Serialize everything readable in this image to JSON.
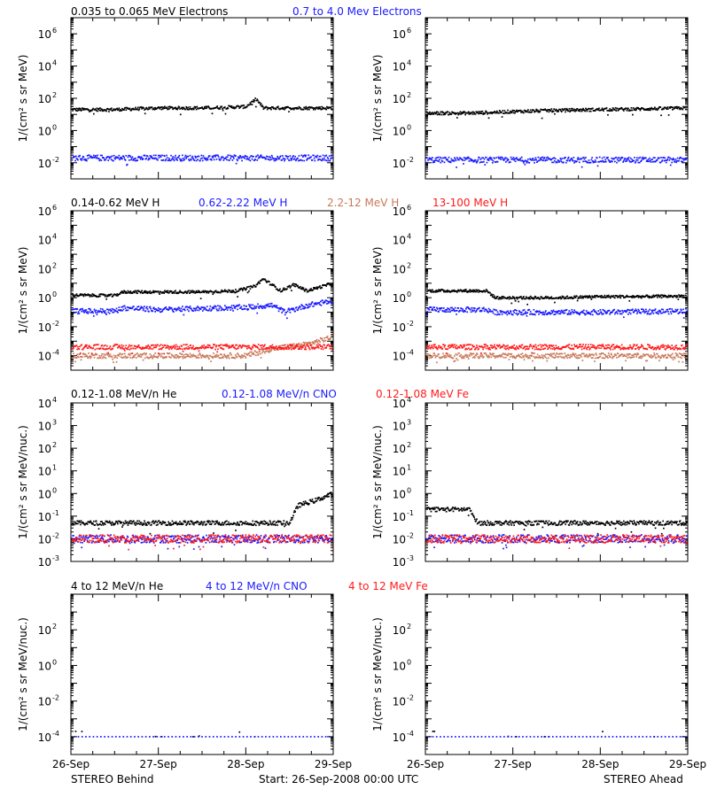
{
  "colors": {
    "black": "#000000",
    "blue": "#1a1aff",
    "brown": "#c87a5a",
    "red": "#ff1a1a"
  },
  "rows": [
    {
      "legend": [
        {
          "text": "0.035 to 0.065 MeV Electrons",
          "color": "#000000"
        },
        {
          "text": "0.7 to 4.0 Mev Electrons",
          "color": "#1a1aff"
        }
      ]
    },
    {
      "legend": [
        {
          "text": "0.14-0.62 MeV H",
          "color": "#000000"
        },
        {
          "text": "0.62-2.22 MeV H",
          "color": "#1a1aff"
        },
        {
          "text": "2.2-12 MeV H",
          "color": "#c87a5a"
        },
        {
          "text": "13-100 MeV H",
          "color": "#ff1a1a"
        }
      ]
    },
    {
      "legend": [
        {
          "text": "0.12-1.08 MeV/n He",
          "color": "#000000"
        },
        {
          "text": "0.12-1.08 MeV/n CNO",
          "color": "#1a1aff"
        },
        {
          "text": "0.12-1.08 MeV Fe",
          "color": "#ff1a1a"
        }
      ]
    },
    {
      "legend": [
        {
          "text": "4 to 12 MeV/n He",
          "color": "#000000"
        },
        {
          "text": "4 to 12 MeV/n CNO",
          "color": "#1a1aff"
        },
        {
          "text": "4 to 12 MeV Fe",
          "color": "#ff1a1a"
        }
      ]
    }
  ],
  "x_tick_labels": [
    "26-Sep",
    "27-Sep",
    "28-Sep",
    "29-Sep"
  ],
  "footer": {
    "left": "STEREO Behind",
    "center": "Start: 26-Sep-2008 00:00 UTC",
    "right": "STEREO Ahead"
  },
  "chart_data": [
    {
      "type": "scatter",
      "panel": "behind-electrons",
      "yscale": "log",
      "ylim_exp": [
        -3,
        7
      ],
      "ylabel": "1/(cm² s sr MeV)",
      "ytick_exps": [
        -2,
        0,
        2,
        4,
        6
      ],
      "x_range_days": [
        0,
        3
      ],
      "series": [
        {
          "name": "0.035 to 0.065 MeV Electrons",
          "color": "#000000",
          "points": [
            [
              0,
              20
            ],
            [
              0.5,
              20
            ],
            [
              1,
              25
            ],
            [
              1.5,
              25
            ],
            [
              2.0,
              30
            ],
            [
              2.12,
              90
            ],
            [
              2.2,
              25
            ],
            [
              2.6,
              25
            ],
            [
              3,
              25
            ]
          ]
        },
        {
          "name": "0.7 to 4.0 Mev Electrons",
          "color": "#1a1aff",
          "points": [
            [
              0,
              0.02
            ],
            [
              1,
              0.02
            ],
            [
              2,
              0.02
            ],
            [
              3,
              0.02
            ]
          ]
        }
      ]
    },
    {
      "type": "scatter",
      "panel": "ahead-electrons",
      "yscale": "log",
      "ylim_exp": [
        -3,
        7
      ],
      "ylabel": "1/(cm² s sr MeV)",
      "ytick_exps": [
        -2,
        0,
        2,
        4,
        6
      ],
      "x_range_days": [
        0,
        3
      ],
      "series": [
        {
          "name": "0.035 to 0.065 MeV Electrons",
          "color": "#000000",
          "points": [
            [
              0,
              12
            ],
            [
              0.5,
              12
            ],
            [
              1,
              15
            ],
            [
              1.5,
              18
            ],
            [
              2,
              20
            ],
            [
              2.5,
              22
            ],
            [
              3,
              25
            ]
          ]
        },
        {
          "name": "0.7 to 4.0 Mev Electrons",
          "color": "#1a1aff",
          "points": [
            [
              0,
              0.015
            ],
            [
              1,
              0.015
            ],
            [
              2,
              0.015
            ],
            [
              3,
              0.015
            ]
          ]
        }
      ]
    },
    {
      "type": "scatter",
      "panel": "behind-protons",
      "yscale": "log",
      "ylim_exp": [
        -5,
        6
      ],
      "ylabel": "1/(cm² s sr MeV)",
      "ytick_exps": [
        -4,
        -2,
        0,
        2,
        4,
        6
      ],
      "x_range_days": [
        0,
        3
      ],
      "series": [
        {
          "name": "0.14-0.62 MeV H",
          "color": "#000000",
          "points": [
            [
              0,
              1.5
            ],
            [
              0.5,
              1.4
            ],
            [
              0.6,
              2.5
            ],
            [
              1,
              2.5
            ],
            [
              1.5,
              2.5
            ],
            [
              1.9,
              3
            ],
            [
              2.1,
              6
            ],
            [
              2.2,
              20
            ],
            [
              2.4,
              3
            ],
            [
              2.55,
              8
            ],
            [
              2.7,
              3
            ],
            [
              3,
              10
            ]
          ]
        },
        {
          "name": "0.62-2.22 MeV H",
          "color": "#1a1aff",
          "points": [
            [
              0,
              0.12
            ],
            [
              0.5,
              0.12
            ],
            [
              0.6,
              0.2
            ],
            [
              1,
              0.15
            ],
            [
              1.5,
              0.18
            ],
            [
              2,
              0.22
            ],
            [
              2.3,
              0.3
            ],
            [
              2.45,
              0.1
            ],
            [
              2.7,
              0.3
            ],
            [
              3,
              0.6
            ]
          ]
        },
        {
          "name": "2.2-12 MeV H",
          "color": "#c87a5a",
          "points": [
            [
              0,
              0.0001
            ],
            [
              1,
              0.0001
            ],
            [
              2,
              0.0001
            ],
            [
              2.3,
              0.0003
            ],
            [
              2.7,
              0.0006
            ],
            [
              3,
              0.002
            ]
          ]
        },
        {
          "name": "13-100 MeV H",
          "color": "#ff1a1a",
          "points": [
            [
              0,
              0.0004
            ],
            [
              1,
              0.0004
            ],
            [
              2,
              0.0004
            ],
            [
              3,
              0.0004
            ]
          ]
        }
      ]
    },
    {
      "type": "scatter",
      "panel": "ahead-protons",
      "yscale": "log",
      "ylim_exp": [
        -5,
        6
      ],
      "ylabel": "1/(cm² s sr MeV)",
      "ytick_exps": [
        -4,
        -2,
        0,
        2,
        4,
        6
      ],
      "x_range_days": [
        0,
        3
      ],
      "series": [
        {
          "name": "0.14-0.62 MeV H",
          "color": "#000000",
          "points": [
            [
              0,
              3
            ],
            [
              0.7,
              3
            ],
            [
              0.8,
              1
            ],
            [
              1.5,
              1
            ],
            [
              2,
              1.2
            ],
            [
              2.5,
              1.2
            ],
            [
              3,
              1.3
            ]
          ]
        },
        {
          "name": "0.62-2.22 MeV H",
          "color": "#1a1aff",
          "points": [
            [
              0,
              0.15
            ],
            [
              0.7,
              0.15
            ],
            [
              0.8,
              0.1
            ],
            [
              2,
              0.1
            ],
            [
              3,
              0.12
            ]
          ]
        },
        {
          "name": "2.2-12 MeV H",
          "color": "#c87a5a",
          "points": [
            [
              0,
              0.0001
            ],
            [
              3,
              0.0001
            ]
          ]
        },
        {
          "name": "13-100 MeV H",
          "color": "#ff1a1a",
          "points": [
            [
              0,
              0.0004
            ],
            [
              3,
              0.0004
            ]
          ]
        }
      ]
    },
    {
      "type": "scatter",
      "panel": "behind-heavy-low",
      "yscale": "log",
      "ylim_exp": [
        -3,
        4
      ],
      "ylabel": "1/(cm² s sr MeV/nuc.)",
      "ytick_exps": [
        -3,
        -2,
        -1,
        0,
        1,
        2,
        3,
        4
      ],
      "x_range_days": [
        0,
        3
      ],
      "series": [
        {
          "name": "0.12-1.08 MeV/n He",
          "color": "#000000",
          "points": [
            [
              0,
              0.05
            ],
            [
              1,
              0.05
            ],
            [
              2,
              0.05
            ],
            [
              2.5,
              0.05
            ],
            [
              2.6,
              0.3
            ],
            [
              2.8,
              0.5
            ],
            [
              3,
              1
            ]
          ]
        },
        {
          "name": "0.12-1.08 MeV/n CNO",
          "color": "#1a1aff",
          "points": [
            [
              0,
              0.01
            ],
            [
              1,
              0.01
            ],
            [
              2,
              0.01
            ],
            [
              3,
              0.01
            ]
          ]
        },
        {
          "name": "0.12-1.08 MeV Fe",
          "color": "#ff1a1a",
          "points": [
            [
              0,
              0.01
            ],
            [
              1,
              0.01
            ],
            [
              2,
              0.01
            ],
            [
              3,
              0.01
            ]
          ]
        }
      ]
    },
    {
      "type": "scatter",
      "panel": "ahead-heavy-low",
      "yscale": "log",
      "ylim_exp": [
        -3,
        4
      ],
      "ylabel": "1/(cm² s sr MeV/nuc.)",
      "ytick_exps": [
        -3,
        -2,
        -1,
        0,
        1,
        2,
        3,
        4
      ],
      "x_range_days": [
        0,
        3
      ],
      "series": [
        {
          "name": "0.12-1.08 MeV/n He",
          "color": "#000000",
          "points": [
            [
              0,
              0.2
            ],
            [
              0.5,
              0.2
            ],
            [
              0.6,
              0.05
            ],
            [
              1,
              0.05
            ],
            [
              2,
              0.05
            ],
            [
              3,
              0.05
            ]
          ]
        },
        {
          "name": "0.12-1.08 MeV/n CNO",
          "color": "#1a1aff",
          "points": [
            [
              0,
              0.01
            ],
            [
              1,
              0.01
            ],
            [
              2,
              0.01
            ],
            [
              3,
              0.01
            ]
          ]
        },
        {
          "name": "0.12-1.08 MeV Fe",
          "color": "#ff1a1a",
          "points": [
            [
              0,
              0.01
            ],
            [
              1,
              0.01
            ],
            [
              2,
              0.01
            ],
            [
              3,
              0.01
            ]
          ]
        }
      ]
    },
    {
      "type": "scatter",
      "panel": "behind-heavy-high",
      "yscale": "log",
      "ylim_exp": [
        -5,
        4
      ],
      "ylabel": "1/(cm² s sr MeV/nuc.)",
      "ytick_exps": [
        -4,
        -2,
        0,
        2
      ],
      "x_range_days": [
        0,
        3
      ],
      "series": [
        {
          "name": "4 to 12 MeV/n He",
          "color": "#000000",
          "points": [
            [
              0.1,
              0.0002
            ],
            [
              1.0,
              0.0001
            ],
            [
              1.4,
              0.0001
            ],
            [
              1.9,
              0.0002
            ],
            [
              2.1,
              0.0001
            ]
          ]
        },
        {
          "name": "4 to 12 MeV/n CNO",
          "color": "#1a1aff",
          "points": [
            [
              0,
              0.0001
            ],
            [
              1,
              0.0001
            ],
            [
              2,
              0.0001
            ],
            [
              2.85,
              0.0001
            ]
          ]
        },
        {
          "name": "4 to 12 MeV Fe",
          "color": "#ff1a1a",
          "points": []
        }
      ]
    },
    {
      "type": "scatter",
      "panel": "ahead-heavy-high",
      "yscale": "log",
      "ylim_exp": [
        -5,
        4
      ],
      "ylabel": "1/(cm² s sr MeV/nuc.)",
      "ytick_exps": [
        -4,
        -2,
        0,
        2
      ],
      "x_range_days": [
        0,
        3
      ],
      "series": [
        {
          "name": "4 to 12 MeV/n He",
          "color": "#000000",
          "points": [
            [
              0.1,
              0.0002
            ],
            [
              1.0,
              0.0001
            ],
            [
              1.4,
              0.0001
            ],
            [
              2.0,
              0.0002
            ],
            [
              2.6,
              0.0001
            ]
          ]
        },
        {
          "name": "4 to 12 MeV/n CNO",
          "color": "#1a1aff",
          "points": [
            [
              0,
              0.0001
            ],
            [
              1,
              0.0001
            ],
            [
              2,
              0.0001
            ],
            [
              3,
              0.0001
            ]
          ]
        },
        {
          "name": "4 to 12 MeV Fe",
          "color": "#ff1a1a",
          "points": []
        }
      ]
    }
  ]
}
